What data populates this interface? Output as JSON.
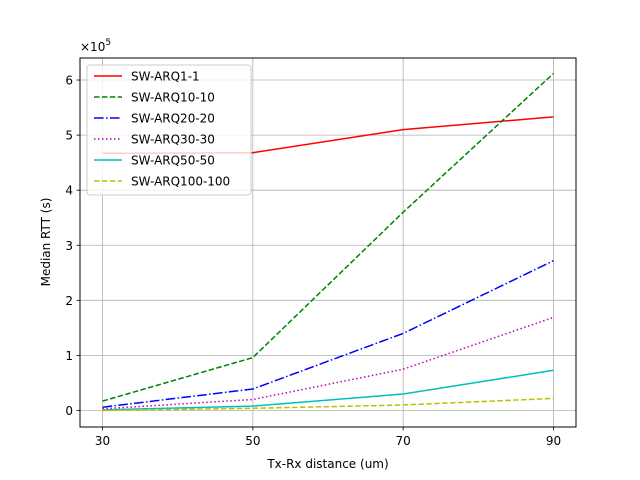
{
  "chart_data": {
    "type": "line",
    "xlabel": "Tx-Rx distance (um)",
    "ylabel": "Median RTT (s)",
    "y_multiplier_label": "×10",
    "y_multiplier_exponent": "5",
    "x": [
      30,
      50,
      70,
      90
    ],
    "x_ticks": [
      "30",
      "50",
      "70",
      "90"
    ],
    "y_ticks": [
      "0",
      "1",
      "2",
      "3",
      "4",
      "5",
      "6"
    ],
    "xlim": [
      27,
      93
    ],
    "ylim": [
      -0.3,
      6.4
    ],
    "grid": true,
    "legend_position": "top-left",
    "series": [
      {
        "name": "SW-ARQ1-1",
        "color": "#ff0000",
        "dash": "solid",
        "values": [
          4.67,
          4.68,
          5.1,
          5.33
        ]
      },
      {
        "name": "SW-ARQ10-10",
        "color": "#008000",
        "dash": "dashed",
        "values": [
          0.17,
          0.96,
          3.6,
          6.12
        ]
      },
      {
        "name": "SW-ARQ20-20",
        "color": "#0000ff",
        "dash": "dashdot",
        "values": [
          0.06,
          0.39,
          1.4,
          2.72
        ]
      },
      {
        "name": "SW-ARQ30-30",
        "color": "#bf00bf",
        "dash": "dotted",
        "values": [
          0.03,
          0.2,
          0.75,
          1.69
        ]
      },
      {
        "name": "SW-ARQ50-50",
        "color": "#00bfbf",
        "dash": "solid",
        "values": [
          0.01,
          0.08,
          0.3,
          0.73
        ]
      },
      {
        "name": "SW-ARQ100-100",
        "color": "#bfbf00",
        "dash": "dashed",
        "values": [
          0.0,
          0.04,
          0.1,
          0.22
        ]
      }
    ]
  }
}
